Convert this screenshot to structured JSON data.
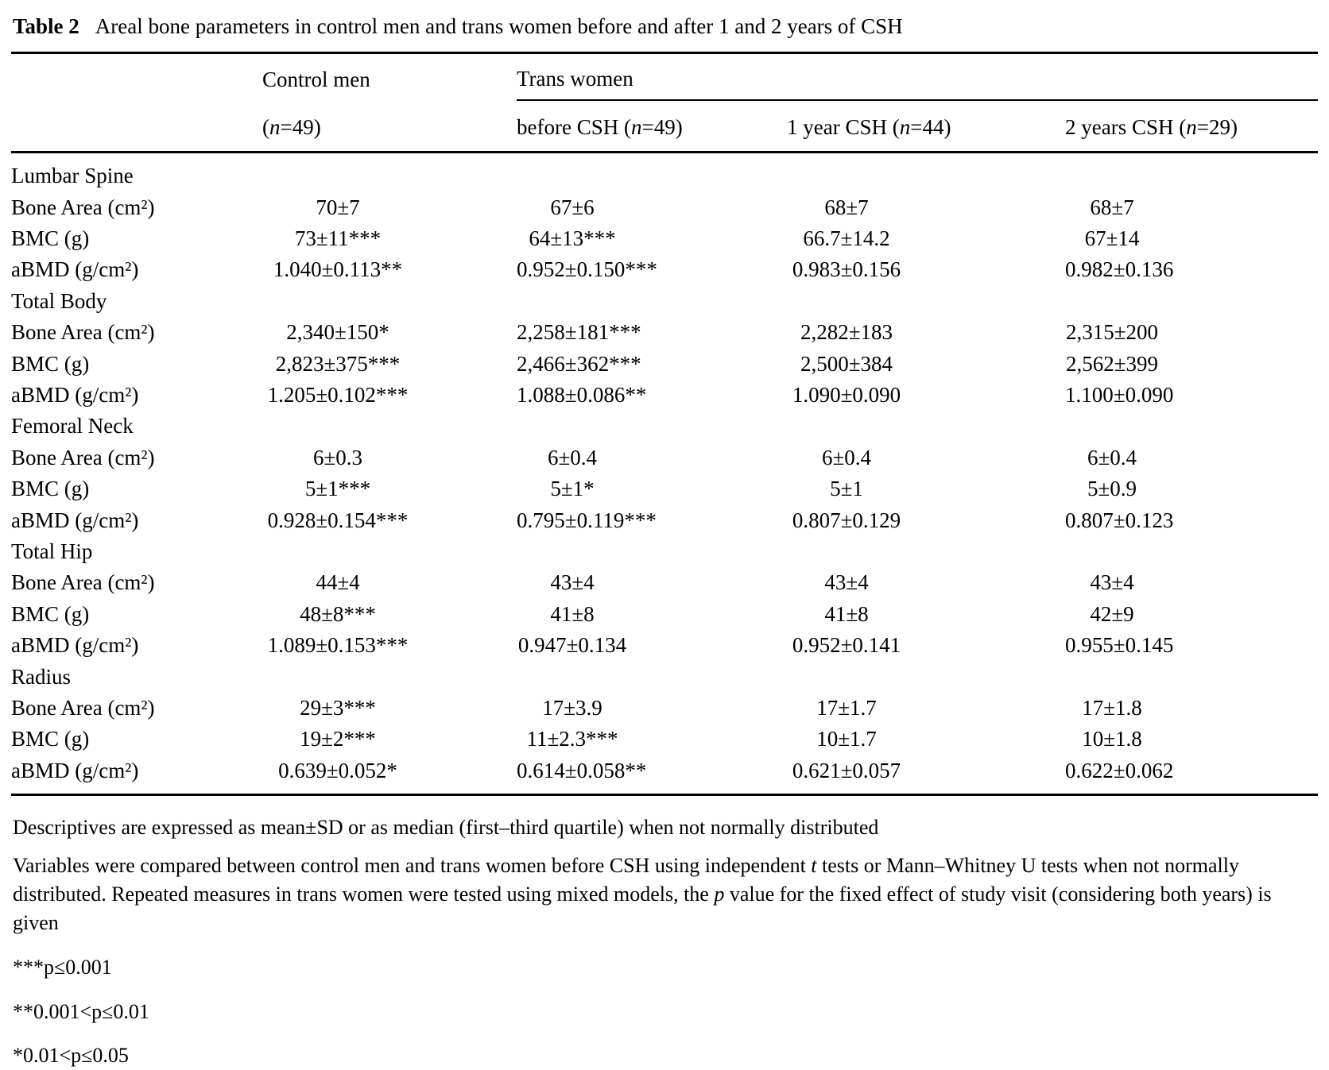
{
  "caption": {
    "label": "Table 2",
    "text": "Areal bone parameters in control men and trans women before and after 1 and 2 years of CSH"
  },
  "header": {
    "control_group": "Control men",
    "trans_group": "Trans women",
    "columns": [
      {
        "segments": [
          {
            "t": "("
          },
          {
            "t": "n",
            "i": true
          },
          {
            "t": "=49)"
          }
        ]
      },
      {
        "segments": [
          {
            "t": "before CSH ("
          },
          {
            "t": "n",
            "i": true
          },
          {
            "t": "=49)"
          }
        ]
      },
      {
        "segments": [
          {
            "t": "1 year CSH ("
          },
          {
            "t": "n",
            "i": true
          },
          {
            "t": "=44)"
          }
        ]
      },
      {
        "segments": [
          {
            "t": "2 years CSH ("
          },
          {
            "t": "n",
            "i": true
          },
          {
            "t": "=29)"
          }
        ]
      }
    ]
  },
  "sections": [
    {
      "name": "Lumbar Spine",
      "rows": [
        {
          "label": "Bone Area (cm²)",
          "values": [
            "70±7",
            "67±6",
            "68±7",
            "68±7"
          ]
        },
        {
          "label": "BMC (g)",
          "values": [
            "73±11***",
            "64±13***",
            "66.7±14.2",
            "67±14"
          ]
        },
        {
          "label": "aBMD (g/cm²)",
          "values": [
            "1.040±0.113**",
            "0.952±0.150***",
            "0.983±0.156",
            "0.982±0.136"
          ]
        }
      ]
    },
    {
      "name": "Total Body",
      "rows": [
        {
          "label": "Bone Area (cm²)",
          "values": [
            "2,340±150*",
            "2,258±181***",
            "2,282±183",
            "2,315±200"
          ]
        },
        {
          "label": "BMC (g)",
          "values": [
            "2,823±375***",
            "2,466±362***",
            "2,500±384",
            "2,562±399"
          ]
        },
        {
          "label": "aBMD (g/cm²)",
          "values": [
            "1.205±0.102***",
            "1.088±0.086**",
            "1.090±0.090",
            "1.100±0.090"
          ]
        }
      ]
    },
    {
      "name": "Femoral Neck",
      "rows": [
        {
          "label": "Bone Area (cm²)",
          "values": [
            "6±0.3",
            "6±0.4",
            "6±0.4",
            "6±0.4"
          ]
        },
        {
          "label": "BMC (g)",
          "values": [
            "5±1***",
            "5±1*",
            "5±1",
            "5±0.9"
          ]
        },
        {
          "label": "aBMD (g/cm²)",
          "values": [
            "0.928±0.154***",
            "0.795±0.119***",
            "0.807±0.129",
            "0.807±0.123"
          ]
        }
      ]
    },
    {
      "name": "Total Hip",
      "rows": [
        {
          "label": "Bone Area (cm²)",
          "values": [
            "44±4",
            "43±4",
            "43±4",
            "43±4"
          ]
        },
        {
          "label": "BMC (g)",
          "values": [
            "48±8***",
            "41±8",
            "41±8",
            "42±9"
          ]
        },
        {
          "label": "aBMD (g/cm²)",
          "values": [
            "1.089±0.153***",
            "0.947±0.134",
            "0.952±0.141",
            "0.955±0.145"
          ]
        }
      ]
    },
    {
      "name": "Radius",
      "rows": [
        {
          "label": "Bone Area (cm²)",
          "values": [
            "29±3***",
            "17±3.9",
            "17±1.7",
            "17±1.8"
          ]
        },
        {
          "label": "BMC (g)",
          "values": [
            "19±2***",
            "11±2.3***",
            "10±1.7",
            "10±1.8"
          ]
        },
        {
          "label": "aBMD (g/cm²)",
          "values": [
            "0.639±0.052*",
            "0.614±0.058**",
            "0.621±0.057",
            "0.622±0.062"
          ]
        }
      ]
    }
  ],
  "footnotes": {
    "descriptives": "Descriptives are expressed as mean±SD or as median (first–third quartile) when not normally distributed",
    "methods_segments": [
      {
        "t": "Variables were compared between control men and trans women before CSH using independent "
      },
      {
        "t": "t",
        "i": true
      },
      {
        "t": " tests or Mann–Whitney U tests when not normally distributed. Repeated measures in trans women were tested using mixed models, the "
      },
      {
        "t": "p",
        "i": true
      },
      {
        "t": " value for the fixed effect of study visit (considering both years) is given"
      }
    ],
    "sig1": "***p≤0.001",
    "sig2": "**0.001<p≤0.01",
    "sig3": "*0.01<p≤0.05"
  }
}
